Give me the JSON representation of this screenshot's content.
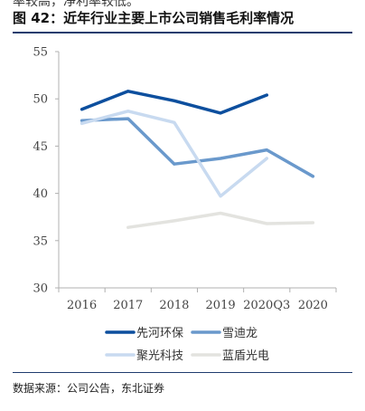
{
  "top_text": "率较高，净利率较低。",
  "title": "图 42：近年行业主要上市公司销售毛利率情况",
  "source": "数据来源：公司公告，东北证券",
  "colors": {
    "title_rule": "#1f3c6e",
    "axis": "#b0b0b0"
  },
  "chart_data": {
    "type": "line",
    "categories": [
      "2016",
      "2017",
      "2018",
      "2019",
      "2020Q3",
      "2020"
    ],
    "ylim": [
      30,
      55
    ],
    "yticks": [
      30,
      35,
      40,
      45,
      50,
      55
    ],
    "grid": false,
    "legend_position": "bottom",
    "series": [
      {
        "name": "先河环保",
        "color": "#0d4f9e",
        "width": 3.5,
        "values": [
          48.9,
          50.8,
          49.8,
          48.5,
          50.4,
          null
        ]
      },
      {
        "name": "雪迪龙",
        "color": "#6a99cc",
        "width": 3.5,
        "values": [
          47.7,
          47.9,
          43.1,
          43.7,
          44.6,
          41.8
        ]
      },
      {
        "name": "聚光科技",
        "color": "#c8daf0",
        "width": 3.5,
        "values": [
          47.4,
          48.7,
          47.5,
          39.7,
          43.7,
          null
        ]
      },
      {
        "name": "蓝盾光电",
        "color": "#e3e3df",
        "width": 3.5,
        "values": [
          null,
          36.4,
          37.1,
          37.9,
          36.8,
          36.9
        ]
      }
    ]
  }
}
